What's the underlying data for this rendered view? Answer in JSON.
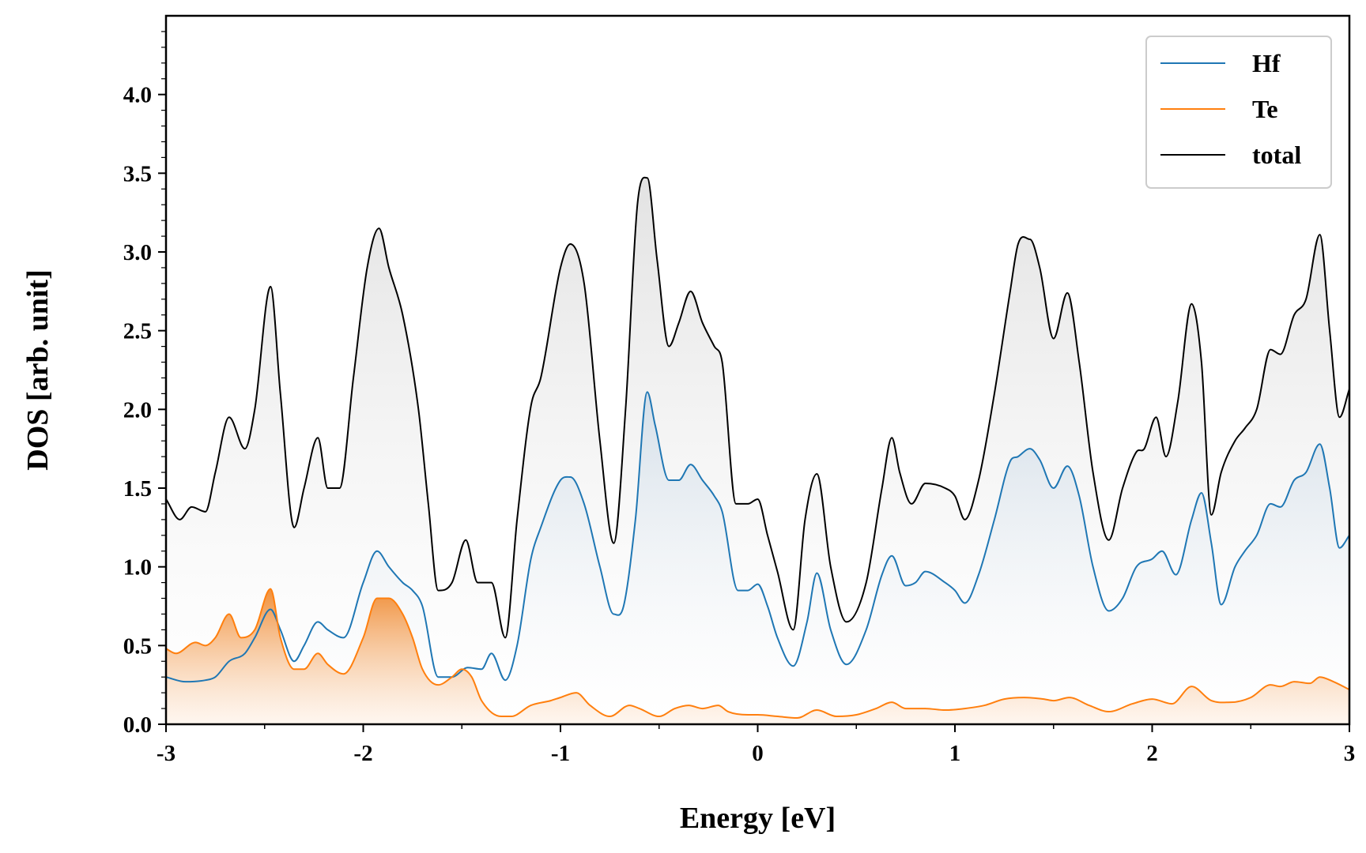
{
  "chart_data": {
    "type": "area",
    "xlabel": "Energy [eV]",
    "ylabel": "DOS [arb. unit]",
    "xlim": [
      -3,
      3
    ],
    "ylim": [
      0,
      4.5
    ],
    "x_ticks": [
      -3,
      -2,
      -1,
      0,
      1,
      2,
      3
    ],
    "x_tick_labels": [
      "-3",
      "-2",
      "-1",
      "0",
      "1",
      "2",
      "3"
    ],
    "y_ticks": [
      0,
      0.5,
      1,
      1.5,
      2,
      2.5,
      3,
      3.5,
      4
    ],
    "y_tick_labels": [
      "0.0",
      "0.5",
      "1.0",
      "1.5",
      "2.0",
      "2.5",
      "3.0",
      "3.5",
      "4.0"
    ],
    "grid": false,
    "legend_position": "top-right",
    "series": [
      {
        "name": "Hf",
        "color": "#1f77b4",
        "filled": true,
        "x": [
          -3.0,
          -2.9,
          -2.8,
          -2.75,
          -2.68,
          -2.6,
          -2.55,
          -2.47,
          -2.42,
          -2.35,
          -2.3,
          -2.23,
          -2.18,
          -2.1,
          -2.0,
          -1.93,
          -1.87,
          -1.8,
          -1.75,
          -1.7,
          -1.62,
          -1.55,
          -1.47,
          -1.4,
          -1.35,
          -1.28,
          -1.22,
          -1.15,
          -1.1,
          -1.0,
          -0.95,
          -0.88,
          -0.8,
          -0.73,
          -0.68,
          -0.62,
          -0.56,
          -0.52,
          -0.45,
          -0.4,
          -0.34,
          -0.28,
          -0.22,
          -0.18,
          -0.1,
          -0.05,
          0.0,
          0.05,
          0.1,
          0.18,
          0.25,
          0.3,
          0.37,
          0.45,
          0.55,
          0.63,
          0.68,
          0.75,
          0.8,
          0.85,
          0.95,
          1.0,
          1.05,
          1.12,
          1.2,
          1.28,
          1.32,
          1.38,
          1.43,
          1.5,
          1.57,
          1.63,
          1.7,
          1.78,
          1.85,
          1.92,
          2.0,
          2.05,
          2.12,
          2.2,
          2.25,
          2.3,
          2.35,
          2.42,
          2.47,
          2.53,
          2.6,
          2.65,
          2.72,
          2.78,
          2.85,
          2.9,
          2.95,
          3.0
        ],
        "y": [
          0.3,
          0.27,
          0.28,
          0.3,
          0.4,
          0.45,
          0.55,
          0.73,
          0.6,
          0.4,
          0.5,
          0.65,
          0.6,
          0.55,
          0.9,
          1.1,
          1.0,
          0.9,
          0.85,
          0.75,
          0.3,
          0.3,
          0.36,
          0.35,
          0.45,
          0.28,
          0.5,
          1.05,
          1.25,
          1.55,
          1.57,
          1.4,
          1.0,
          0.7,
          0.75,
          1.3,
          2.11,
          1.9,
          1.55,
          1.55,
          1.65,
          1.55,
          1.45,
          1.35,
          0.85,
          0.85,
          0.89,
          0.75,
          0.55,
          0.37,
          0.65,
          0.96,
          0.6,
          0.38,
          0.6,
          0.95,
          1.07,
          0.88,
          0.9,
          0.97,
          0.9,
          0.85,
          0.77,
          0.95,
          1.3,
          1.67,
          1.7,
          1.75,
          1.68,
          1.5,
          1.64,
          1.45,
          1.0,
          0.72,
          0.8,
          1.0,
          1.05,
          1.1,
          0.95,
          1.3,
          1.47,
          1.15,
          0.76,
          1.0,
          1.1,
          1.2,
          1.4,
          1.38,
          1.55,
          1.6,
          1.78,
          1.5,
          1.12,
          1.2
        ]
      },
      {
        "name": "Te",
        "color": "#ff7f0e",
        "filled": true,
        "x": [
          -3.0,
          -2.95,
          -2.85,
          -2.8,
          -2.75,
          -2.68,
          -2.62,
          -2.55,
          -2.47,
          -2.42,
          -2.35,
          -2.3,
          -2.23,
          -2.18,
          -2.1,
          -2.0,
          -1.93,
          -1.87,
          -1.8,
          -1.75,
          -1.7,
          -1.62,
          -1.55,
          -1.5,
          -1.45,
          -1.4,
          -1.3,
          -1.25,
          -1.15,
          -1.05,
          -1.0,
          -0.92,
          -0.85,
          -0.75,
          -0.65,
          -0.6,
          -0.5,
          -0.42,
          -0.35,
          -0.28,
          -0.2,
          -0.15,
          -0.05,
          0.0,
          0.1,
          0.2,
          0.3,
          0.4,
          0.5,
          0.6,
          0.68,
          0.75,
          0.85,
          0.95,
          1.05,
          1.15,
          1.25,
          1.35,
          1.45,
          1.5,
          1.58,
          1.68,
          1.78,
          1.9,
          2.0,
          2.1,
          2.2,
          2.3,
          2.4,
          2.5,
          2.6,
          2.65,
          2.72,
          2.8,
          2.85,
          2.92,
          3.0
        ],
        "y": [
          0.48,
          0.45,
          0.52,
          0.5,
          0.55,
          0.7,
          0.55,
          0.6,
          0.86,
          0.55,
          0.35,
          0.35,
          0.45,
          0.38,
          0.32,
          0.55,
          0.8,
          0.8,
          0.7,
          0.55,
          0.35,
          0.25,
          0.3,
          0.35,
          0.3,
          0.15,
          0.05,
          0.05,
          0.12,
          0.15,
          0.17,
          0.2,
          0.12,
          0.05,
          0.12,
          0.1,
          0.05,
          0.1,
          0.12,
          0.1,
          0.12,
          0.08,
          0.06,
          0.06,
          0.05,
          0.04,
          0.09,
          0.05,
          0.06,
          0.1,
          0.14,
          0.1,
          0.1,
          0.09,
          0.1,
          0.12,
          0.16,
          0.17,
          0.16,
          0.15,
          0.17,
          0.12,
          0.08,
          0.13,
          0.16,
          0.13,
          0.24,
          0.15,
          0.14,
          0.17,
          0.25,
          0.24,
          0.27,
          0.26,
          0.3,
          0.27,
          0.22
        ]
      },
      {
        "name": "total",
        "color": "#000000",
        "filled": true,
        "x": [
          -3.0,
          -2.93,
          -2.87,
          -2.8,
          -2.75,
          -2.68,
          -2.6,
          -2.55,
          -2.47,
          -2.42,
          -2.35,
          -2.3,
          -2.23,
          -2.18,
          -2.12,
          -2.05,
          -1.98,
          -1.92,
          -1.87,
          -1.8,
          -1.72,
          -1.67,
          -1.62,
          -1.55,
          -1.48,
          -1.42,
          -1.35,
          -1.28,
          -1.22,
          -1.15,
          -1.1,
          -1.0,
          -0.95,
          -0.88,
          -0.8,
          -0.73,
          -0.67,
          -0.61,
          -0.56,
          -0.51,
          -0.45,
          -0.4,
          -0.34,
          -0.28,
          -0.22,
          -0.18,
          -0.11,
          -0.05,
          0.0,
          0.05,
          0.1,
          0.18,
          0.24,
          0.3,
          0.37,
          0.45,
          0.55,
          0.63,
          0.68,
          0.72,
          0.78,
          0.85,
          0.95,
          1.0,
          1.05,
          1.12,
          1.2,
          1.28,
          1.32,
          1.38,
          1.43,
          1.5,
          1.57,
          1.63,
          1.7,
          1.78,
          1.85,
          1.92,
          1.96,
          2.02,
          2.07,
          2.13,
          2.2,
          2.25,
          2.3,
          2.35,
          2.42,
          2.47,
          2.53,
          2.6,
          2.65,
          2.72,
          2.78,
          2.85,
          2.9,
          2.95,
          3.0
        ],
        "y": [
          1.43,
          1.3,
          1.38,
          1.35,
          1.6,
          1.95,
          1.75,
          2.0,
          2.78,
          2.1,
          1.25,
          1.5,
          1.82,
          1.5,
          1.5,
          2.2,
          2.9,
          3.15,
          2.9,
          2.6,
          2.0,
          1.4,
          0.85,
          0.9,
          1.17,
          0.9,
          0.9,
          0.55,
          1.3,
          2.02,
          2.2,
          2.9,
          3.05,
          2.8,
          1.8,
          1.15,
          2.0,
          3.3,
          3.47,
          2.95,
          2.4,
          2.55,
          2.75,
          2.55,
          2.4,
          2.3,
          1.4,
          1.4,
          1.43,
          1.2,
          0.97,
          0.6,
          1.3,
          1.59,
          1.0,
          0.65,
          0.9,
          1.5,
          1.82,
          1.6,
          1.4,
          1.53,
          1.5,
          1.45,
          1.3,
          1.55,
          2.1,
          2.75,
          3.05,
          3.08,
          2.9,
          2.45,
          2.74,
          2.3,
          1.6,
          1.17,
          1.5,
          1.73,
          1.75,
          1.95,
          1.7,
          2.05,
          2.67,
          2.3,
          1.33,
          1.6,
          1.8,
          1.88,
          2.0,
          2.38,
          2.35,
          2.6,
          2.7,
          3.11,
          2.5,
          1.95,
          2.13
        ]
      }
    ]
  }
}
